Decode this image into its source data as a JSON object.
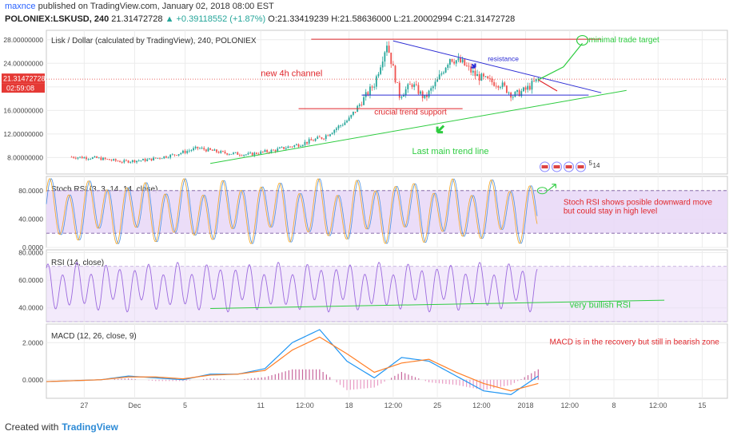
{
  "header": {
    "author": "maxnce",
    "published": "published on TradingView.com, January 02, 2018 08:00 EST",
    "symbol": "POLONIEX:LSKUSD, 240",
    "last": "21.31472728",
    "change": "▲ +0.39118552 (+1.87%)",
    "ohlc": "O:21.33419239 H:21.58636000 L:21.20002994 C:21.31472728"
  },
  "footer": {
    "created_with": "Created with",
    "brand": "TradingView"
  },
  "colors": {
    "candle_up": "#26a69a",
    "candle_down": "#ef5350",
    "rsi_line": "#9c6ade",
    "macd_line": "#2196f3",
    "signal_line": "#ff7f27",
    "annotation_red": "#e0262b",
    "annotation_green": "#2ecc40",
    "annotation_blue": "#2b2bd4",
    "panel_fill": "#e9d9f7"
  },
  "chart_data": [
    {
      "type": "candlestick",
      "title": "Lisk / Dollar (calculated by TradingView), 240, POLONIEX",
      "y_ticks": [
        "28.00000000",
        "24.00000000",
        "20.00000000",
        "16.00000000",
        "12.00000000",
        "8.00000000"
      ],
      "y_tick_values": [
        28,
        24,
        20,
        16,
        12,
        8
      ],
      "ylim": [
        5.2,
        29.6
      ],
      "price_label": "21.31472728",
      "countdown_label": "02:59:08",
      "x_ticks": [
        "27",
        "Dec",
        "5",
        "11",
        "12:00",
        "18",
        "12:00",
        "25",
        "12:00",
        "2018",
        "12:00",
        "8",
        "12:00",
        "15"
      ],
      "x_tick_dates": [
        "2017-11-27",
        "2017-12-01",
        "2017-12-05",
        "2017-12-11",
        "2017-12-14T12:00",
        "2017-12-18",
        "2017-12-21T12:00",
        "2017-12-25",
        "2017-12-28T12:00",
        "2018-01-01",
        "2018-01-04T12:00",
        "2018-01-08",
        "2018-01-11T12:00",
        "2018-01-15"
      ],
      "close_series": [
        {
          "date": "2017-11-26",
          "value": 8.1
        },
        {
          "date": "2017-11-28",
          "value": 7.9
        },
        {
          "date": "2017-11-30",
          "value": 7.3
        },
        {
          "date": "2017-12-02",
          "value": 7.6
        },
        {
          "date": "2017-12-04",
          "value": 8.4
        },
        {
          "date": "2017-12-06",
          "value": 9.6
        },
        {
          "date": "2017-12-08",
          "value": 8.8
        },
        {
          "date": "2017-12-10",
          "value": 8.5
        },
        {
          "date": "2017-12-12",
          "value": 9.2
        },
        {
          "date": "2017-12-14",
          "value": 10.2
        },
        {
          "date": "2017-12-16",
          "value": 11.5
        },
        {
          "date": "2017-12-18",
          "value": 14.5
        },
        {
          "date": "2017-12-19",
          "value": 17.5
        },
        {
          "date": "2017-12-20",
          "value": 20.5
        },
        {
          "date": "2017-12-21",
          "value": 27.5
        },
        {
          "date": "2017-12-22",
          "value": 18.5
        },
        {
          "date": "2017-12-23",
          "value": 20.5
        },
        {
          "date": "2017-12-24",
          "value": 18
        },
        {
          "date": "2017-12-25",
          "value": 21
        },
        {
          "date": "2017-12-26",
          "value": 25
        },
        {
          "date": "2017-12-27",
          "value": 24
        },
        {
          "date": "2017-12-28",
          "value": 22
        },
        {
          "date": "2017-12-29",
          "value": 21
        },
        {
          "date": "2017-12-30",
          "value": 20.5
        },
        {
          "date": "2017-12-31",
          "value": 18.5
        },
        {
          "date": "2018-01-01",
          "value": 19.5
        },
        {
          "date": "2018-01-02",
          "value": 21.3
        }
      ],
      "annotations": [
        {
          "text": "new 4h channel",
          "color": "red"
        },
        {
          "text": "crucial trend support",
          "color": "red"
        },
        {
          "text": "Last main trend line",
          "color": "green"
        },
        {
          "text": "resistance",
          "color": "blue"
        },
        {
          "text": "minimal trade target",
          "color": "green"
        }
      ],
      "event_badge_count": "5",
      "event_badge_date": "14"
    },
    {
      "type": "line",
      "title": "Stoch RSI (3, 3, 14, 14, close)",
      "y_ticks": [
        "80.0000",
        "40.0000",
        "0.0000"
      ],
      "y_tick_values": [
        80,
        40,
        0
      ],
      "ylim": [
        0,
        100
      ],
      "band": [
        20,
        80
      ],
      "annotation": [
        "Stoch RSI shows posible downward move",
        "but could stay in high level"
      ]
    },
    {
      "type": "line",
      "title": "RSI (14, close)",
      "y_ticks": [
        "80.0000",
        "60.0000",
        "40.0000"
      ],
      "y_tick_values": [
        80,
        60,
        40
      ],
      "ylim": [
        30,
        82
      ],
      "band": [
        30,
        70
      ],
      "annotation": "very bullish RSI"
    },
    {
      "type": "line",
      "title": "MACD (12, 26, close, 9)",
      "y_ticks": [
        "2.0000",
        "0.0000"
      ],
      "y_tick_values": [
        2,
        0
      ],
      "ylim": [
        -1.0,
        3.0
      ],
      "series": [
        {
          "name": "MACD",
          "values": [
            -0.1,
            -0.05,
            0.0,
            0.2,
            0.1,
            0.0,
            0.3,
            0.3,
            0.6,
            2.0,
            2.7,
            1.0,
            0.1,
            1.2,
            1.0,
            0.2,
            -0.6,
            -0.8,
            0.2
          ]
        },
        {
          "name": "Signal",
          "values": [
            -0.1,
            -0.05,
            0.0,
            0.15,
            0.15,
            0.05,
            0.25,
            0.3,
            0.5,
            1.6,
            2.3,
            1.4,
            0.4,
            0.9,
            1.1,
            0.4,
            -0.2,
            -0.6,
            -0.2
          ]
        }
      ],
      "annotation": "MACD is in the recovery but still in bearish zone"
    }
  ]
}
